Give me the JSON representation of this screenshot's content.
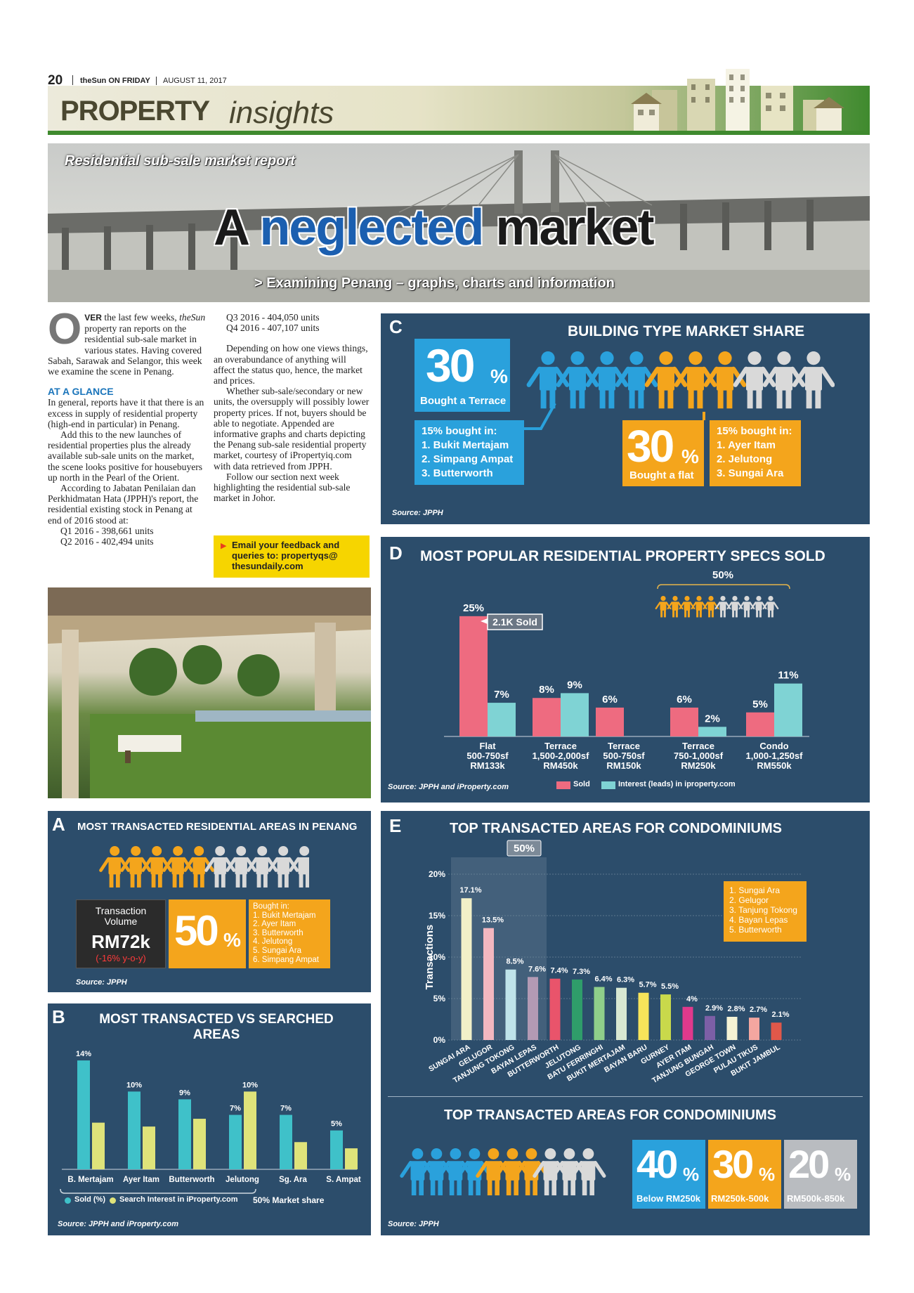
{
  "masthead": {
    "page_number": "20",
    "paper": "theSun ON FRIDAY",
    "date": "AUGUST 11, 2017",
    "section_bold": "PROPERTY",
    "section_italic": "insights"
  },
  "hero": {
    "kicker": "Residential sub-sale market report",
    "headline_a": "A ",
    "headline_b": "neglected",
    "headline_c": " market",
    "subhead": "> Examining Penang – graphs, charts and information"
  },
  "article": {
    "dropcap": "O",
    "lead_caps": "VER",
    "p1_rest": " the last few weeks,",
    "p1_italic": "theSun",
    "p1_b": " property ran reports on the residential sub-sale market in various states. Having covered Sabah, Sarawak and Selangor, this week we examine the scene in Penang.",
    "glance_heading": "AT A GLANCE",
    "p2": "In general, reports have it that there is an excess in supply of residential property (high-end in particular) in Penang.",
    "p3": "Add this to the new launches of residential properties plus the already available sub-sale units on the market, the scene looks positive for housebuyers up north in the Pearl of the Orient.",
    "p4": "According to Jabatan Penilaian dan Perkhidmatan Hata (JPPH)'s report, the residential existing stock in Penang at end of 2016 stood at:",
    "stock": [
      "Q1 2016 - 398,661 units",
      "Q2 2016 - 402,494 units",
      "Q3 2016 - 404,050 units",
      "Q4 2016 - 407,107 units"
    ],
    "p5": "Depending on how one views things, an overabundance of anything will affect the status quo, hence, the market and prices.",
    "p6": "Whether sub-sale/secondary or new units, the oversupply will possibly lower property prices. If not, buyers should be able to negotiate. Appended are informative graphs and charts depicting the Penang sub-sale residential property market, courtesy of iPropertyiq.com with data retrieved from JPPH.",
    "p7": "Follow our section next week highlighting the residential sub-sale market in Johor.",
    "feedback": "Email your feedback and queries to: propertyqs@ thesundaily.com"
  },
  "panel_a": {
    "letter": "A",
    "title": "MOST TRANSACTED RESIDENTIAL AREAS IN PENANG",
    "volume_label": "Transaction Volume",
    "volume_value": "RM72k",
    "volume_change": "(-16% y-o-y)",
    "share": "50",
    "share_unit": "%",
    "bought_heading": "Bought in:",
    "bought_list": [
      "1. Bukit Mertajam",
      "2. Ayer Itam",
      "3. Butterworth",
      "4. Jelutong",
      "5. Sungai Ara",
      "6. Simpang Ampat"
    ],
    "source": "Source: JPPH"
  },
  "panel_b": {
    "letter": "B",
    "title_1": "MOST TRANSACTED VS SEARCHED",
    "title_2": "AREAS",
    "legend_sold": "Sold (%)",
    "legend_search": "Search Interest in iProperty.com",
    "market_share": "50% Market share",
    "source": "Source: JPPH and iProperty.com"
  },
  "panel_c": {
    "letter": "C",
    "title": "BUILDING TYPE MARKET SHARE",
    "terrace_pct": "30",
    "terrace_unit": "%",
    "terrace_label": "Bought a Terrace",
    "terrace_heading": "15% bought in:",
    "terrace_list": [
      "1. Bukit Mertajam",
      "2. Simpang Ampat",
      "3. Butterworth"
    ],
    "flat_pct": "30",
    "flat_unit": "%",
    "flat_label": "Bought a flat",
    "flat_heading": "15% bought in:",
    "flat_list": [
      "1. Ayer Itam",
      "2. Jelutong",
      "3. Sungai Ara"
    ],
    "source": "Source: JPPH"
  },
  "panel_d": {
    "letter": "D",
    "title": "MOST POPULAR RESIDENTIAL PROPERTY SPECS SOLD",
    "bracket_label": "50%",
    "callout": "2.1K Sold",
    "legend_sold": "Sold",
    "legend_interest": "Interest (leads) in iproperty.com",
    "source": "Source: JPPH and iProperty.com"
  },
  "panel_e": {
    "letter": "E",
    "title": "TOP TRANSACTED AREAS FOR CONDOMINIUMS",
    "band_label": "50%",
    "top5": [
      "1. Sungai Ara",
      "2. Gelugor",
      "3. Tanjung Tokong",
      "4. Bayan Lepas",
      "5. Butterworth"
    ],
    "title_2": "TOP TRANSACTED AREAS FOR CONDOMINIUMS",
    "price_bands": [
      {
        "pct": "40",
        "unit": "%",
        "label": "Below RM250k",
        "color": "#2aa1dc"
      },
      {
        "pct": "30",
        "unit": "%",
        "label": "RM250k-500k",
        "color": "#f4a51c"
      },
      {
        "pct": "20",
        "unit": "%",
        "label": "RM500k-850k",
        "color": "#b9bcc0"
      }
    ],
    "source": "Source: JPPH"
  },
  "colors": {
    "panel_bg": "#2c4d6b",
    "orange": "#f4a51c",
    "blue": "#2aa1dc",
    "pink": "#ee6b80",
    "teal": "#7fd3d4",
    "cyan": "#3fc1c9",
    "yellow": "#dfe37a",
    "green_band": "#4a8f2f"
  },
  "chart_data": [
    {
      "id": "B",
      "type": "bar",
      "categories": [
        "B. Mertajam",
        "Ayer Itam",
        "Butterworth",
        "Jelutong",
        "Sg. Ara",
        "S. Ampat"
      ],
      "series": [
        {
          "name": "Sold (%)",
          "values": [
            14,
            10,
            9,
            7,
            7,
            5
          ],
          "labels": [
            "14%",
            "10%",
            "9%",
            "7%",
            "7%",
            "5%"
          ]
        },
        {
          "name": "Search Interest in iProperty.com",
          "values": [
            6,
            5.5,
            6.5,
            10,
            3.5,
            2.7
          ],
          "labels": [
            "",
            "",
            "",
            "10%",
            "",
            ""
          ]
        }
      ],
      "ylim": [
        0,
        15
      ]
    },
    {
      "id": "D",
      "type": "bar",
      "categories": [
        [
          "Flat",
          "500-750sf",
          "RM133k"
        ],
        [
          "Terrace",
          "1,500-2,000sf",
          "RM450k"
        ],
        [
          "Terrace",
          "500-750sf",
          "RM150k"
        ],
        [
          "Terrace",
          "750-1,000sf",
          "RM250k"
        ],
        [
          "Condo",
          "1,000-1,250sf",
          "RM550k"
        ]
      ],
      "series": [
        {
          "name": "Sold",
          "values": [
            25,
            8,
            6,
            6,
            5
          ]
        },
        {
          "name": "Interest (leads) in iproperty.com",
          "values": [
            7,
            9,
            null,
            2,
            11
          ]
        }
      ],
      "ylim": [
        0,
        26
      ]
    },
    {
      "id": "E",
      "type": "bar",
      "ylabel": "Transactions",
      "ylim": [
        0,
        20
      ],
      "yticks": [
        "0%",
        "5%",
        "10%",
        "15%",
        "20%"
      ],
      "categories": [
        "SUNGAI ARA",
        "GELUGOR",
        "TANJUNG TOKONG",
        "BAYAN LEPAS",
        "BUTTERWORTH",
        "JELUTONG",
        "BATU FERRINGHI",
        "BUKIT MERTAJAM",
        "BAYAN BARU",
        "GURNEY",
        "AYER ITAM",
        "TANJUNG BUNGAH",
        "GEORGE TOWN",
        "PULAU TIKUS",
        "BUKIT JAMBUL"
      ],
      "values": [
        17.1,
        13.5,
        8.5,
        7.6,
        7.4,
        7.3,
        6.4,
        6.3,
        5.7,
        5.5,
        4,
        2.9,
        2.8,
        2.7,
        2.1
      ],
      "labels": [
        "17.1%",
        "13.5%",
        "8.5%",
        "7.6%",
        "7.4%",
        "7.3%",
        "6.4%",
        "6.3%",
        "5.7%",
        "5.5%",
        "4%",
        "2.9%",
        "2.8%",
        "2.7%",
        "2.1%"
      ],
      "colors": [
        "#f2f0c8",
        "#f3b7c0",
        "#bfe3ea",
        "#b39ab4",
        "#e9546b",
        "#2f9d6a",
        "#8fcf8a",
        "#d8e8d2",
        "#f7e45a",
        "#c9d94b",
        "#e0398c",
        "#7c5fa6",
        "#f4f2d4",
        "#f3a6a0",
        "#e0584a"
      ]
    }
  ]
}
